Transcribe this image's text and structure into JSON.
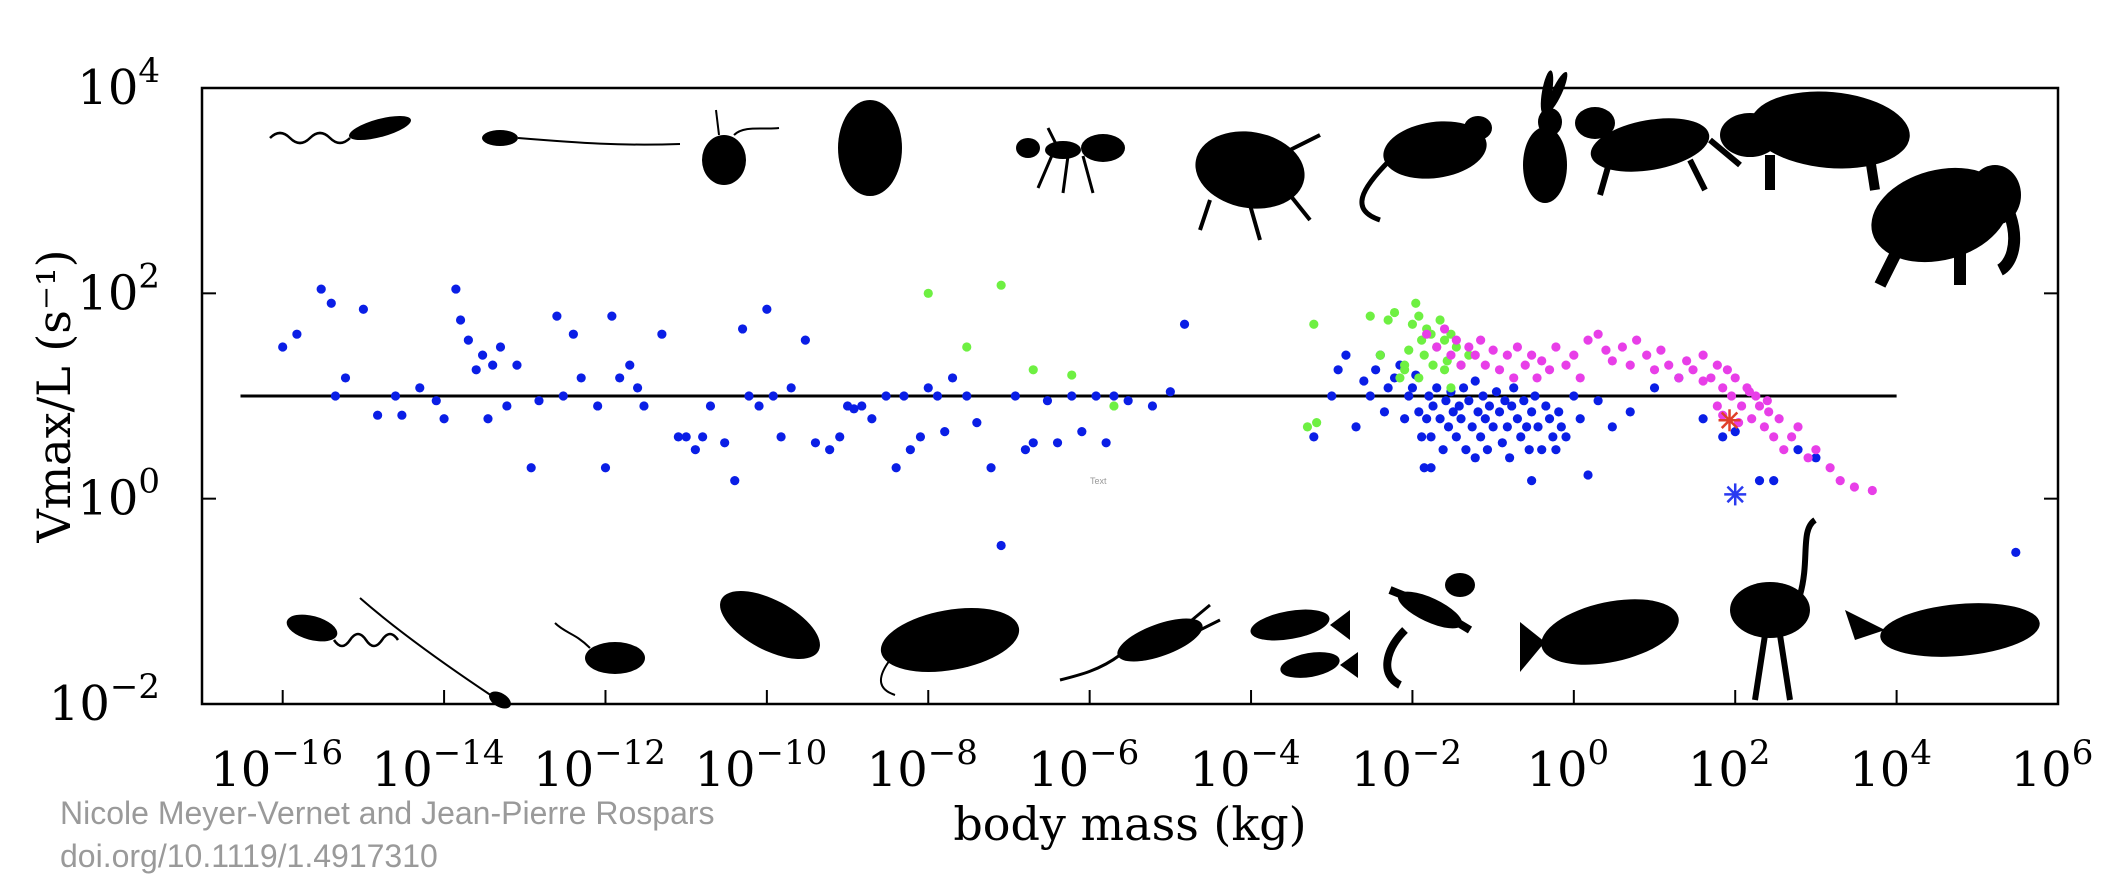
{
  "chart_data": {
    "type": "scatter",
    "title": "",
    "xlabel": "body mass (kg)",
    "ylabel": "Vmax/L (s⁻¹)",
    "x_scale": "log",
    "y_scale": "log",
    "xlim": [
      1e-17,
      1000000.0
    ],
    "ylim": [
      0.01,
      10000
    ],
    "x_ticks": [
      {
        "value": 1e-16,
        "base": "10",
        "exp": "−16"
      },
      {
        "value": 1e-14,
        "base": "10",
        "exp": "−14"
      },
      {
        "value": 1e-12,
        "base": "10",
        "exp": "−12"
      },
      {
        "value": 1e-10,
        "base": "10",
        "exp": "−10"
      },
      {
        "value": 1e-08,
        "base": "10",
        "exp": "−8"
      },
      {
        "value": 1e-06,
        "base": "10",
        "exp": "−6"
      },
      {
        "value": 0.0001,
        "base": "10",
        "exp": "−4"
      },
      {
        "value": 0.01,
        "base": "10",
        "exp": "−2"
      },
      {
        "value": 1,
        "base": "10",
        "exp": "0"
      },
      {
        "value": 100.0,
        "base": "10",
        "exp": "2"
      },
      {
        "value": 10000.0,
        "base": "10",
        "exp": "4"
      },
      {
        "value": 1000000.0,
        "base": "10",
        "exp": "6"
      }
    ],
    "y_ticks": [
      {
        "value": 0.01,
        "base": "10",
        "exp": "−2"
      },
      {
        "value": 1,
        "base": "10",
        "exp": "0"
      },
      {
        "value": 100,
        "base": "10",
        "exp": "2"
      },
      {
        "value": 10000,
        "base": "10",
        "exp": "4"
      }
    ],
    "grid": false,
    "reference_line": {
      "y": 10,
      "x_from": 3e-17,
      "x_to": 10000.0,
      "color": "#000000"
    },
    "stray_text": "Text",
    "series": [
      {
        "color": "#0a1ee6",
        "marker": "dot",
        "points": [
          [
            1e-16,
            30
          ],
          [
            1.5e-16,
            40
          ],
          [
            3e-16,
            110
          ],
          [
            4e-16,
            80
          ],
          [
            4.5e-16,
            10
          ],
          [
            6e-16,
            15
          ],
          [
            1e-15,
            70
          ],
          [
            1.5e-15,
            6.5
          ],
          [
            2.5e-15,
            10
          ],
          [
            3e-15,
            6.5
          ],
          [
            5e-15,
            12
          ],
          [
            8e-15,
            9
          ],
          [
            1e-14,
            6
          ],
          [
            1.4e-14,
            110
          ],
          [
            1.6e-14,
            55
          ],
          [
            2e-14,
            35
          ],
          [
            2.5e-14,
            18
          ],
          [
            3e-14,
            25
          ],
          [
            3.5e-14,
            6
          ],
          [
            4e-14,
            20
          ],
          [
            5e-14,
            30
          ],
          [
            6e-14,
            8
          ],
          [
            8e-14,
            20
          ],
          [
            1.2e-13,
            2
          ],
          [
            1.5e-13,
            9
          ],
          [
            2.5e-13,
            60
          ],
          [
            3e-13,
            10
          ],
          [
            4e-13,
            40
          ],
          [
            5e-13,
            15
          ],
          [
            8e-13,
            8
          ],
          [
            1e-12,
            2
          ],
          [
            1.2e-12,
            60
          ],
          [
            1.5e-12,
            15
          ],
          [
            2e-12,
            20
          ],
          [
            2.5e-12,
            12
          ],
          [
            3e-12,
            8
          ],
          [
            5e-12,
            40
          ],
          [
            8e-12,
            4
          ],
          [
            1e-11,
            4
          ],
          [
            1.3e-11,
            3
          ],
          [
            1.6e-11,
            4
          ],
          [
            2e-11,
            8
          ],
          [
            3e-11,
            3.5
          ],
          [
            4e-11,
            1.5
          ],
          [
            5e-11,
            45
          ],
          [
            6e-11,
            10
          ],
          [
            8e-11,
            8
          ],
          [
            1e-10,
            70
          ],
          [
            1.2e-10,
            10
          ],
          [
            1.5e-10,
            4
          ],
          [
            2e-10,
            12
          ],
          [
            3e-10,
            35
          ],
          [
            4e-10,
            3.5
          ],
          [
            6e-10,
            3
          ],
          [
            8e-10,
            4
          ],
          [
            1e-09,
            8
          ],
          [
            1.2e-09,
            7.5
          ],
          [
            1.5e-09,
            8
          ],
          [
            2e-09,
            6
          ],
          [
            3e-09,
            10
          ],
          [
            4e-09,
            2
          ],
          [
            5e-09,
            10
          ],
          [
            6e-09,
            3
          ],
          [
            8e-09,
            4
          ],
          [
            1e-08,
            12
          ],
          [
            1.3e-08,
            10
          ],
          [
            1.6e-08,
            4.5
          ],
          [
            2e-08,
            15
          ],
          [
            3e-08,
            10
          ],
          [
            4e-08,
            5.5
          ],
          [
            6e-08,
            2
          ],
          [
            8e-08,
            0.35
          ],
          [
            1.2e-07,
            10
          ],
          [
            1.6e-07,
            3
          ],
          [
            2e-07,
            3.5
          ],
          [
            3e-07,
            9
          ],
          [
            4e-07,
            3.5
          ],
          [
            6e-07,
            10
          ],
          [
            8e-07,
            4.5
          ],
          [
            1.2e-06,
            10
          ],
          [
            1.6e-06,
            3.5
          ],
          [
            2e-06,
            10
          ],
          [
            3e-06,
            9
          ],
          [
            6e-06,
            8
          ],
          [
            1e-05,
            11
          ],
          [
            1.5e-05,
            50
          ],
          [
            0.0006,
            4
          ],
          [
            0.001,
            10
          ],
          [
            0.0012,
            18
          ],
          [
            0.0015,
            25
          ],
          [
            0.002,
            5
          ],
          [
            0.0025,
            14
          ],
          [
            0.003,
            10
          ],
          [
            0.0035,
            18
          ],
          [
            0.004,
            25
          ],
          [
            0.0045,
            7
          ],
          [
            0.005,
            12
          ],
          [
            0.006,
            15
          ],
          [
            0.007,
            20
          ],
          [
            0.008,
            6
          ],
          [
            0.009,
            10
          ],
          [
            0.01,
            12
          ],
          [
            0.011,
            16
          ],
          [
            0.012,
            7
          ],
          [
            0.013,
            4
          ],
          [
            0.014,
            2
          ],
          [
            0.015,
            6
          ],
          [
            0.016,
            10
          ],
          [
            0.017,
            4
          ],
          [
            0.018,
            8
          ],
          [
            0.02,
            12
          ],
          [
            0.022,
            6
          ],
          [
            0.024,
            3
          ],
          [
            0.026,
            9
          ],
          [
            0.028,
            5
          ],
          [
            0.03,
            11
          ],
          [
            0.032,
            7
          ],
          [
            0.035,
            4
          ],
          [
            0.038,
            8
          ],
          [
            0.04,
            6
          ],
          [
            0.043,
            12
          ],
          [
            0.046,
            3
          ],
          [
            0.05,
            9
          ],
          [
            0.055,
            5
          ],
          [
            0.06,
            14
          ],
          [
            0.065,
            7
          ],
          [
            0.07,
            4
          ],
          [
            0.075,
            10
          ],
          [
            0.08,
            6
          ],
          [
            0.085,
            3
          ],
          [
            0.09,
            8
          ],
          [
            0.1,
            5
          ],
          [
            0.11,
            11
          ],
          [
            0.12,
            7
          ],
          [
            0.13,
            3.5
          ],
          [
            0.14,
            9
          ],
          [
            0.15,
            5
          ],
          [
            0.16,
            2.5
          ],
          [
            0.17,
            8
          ],
          [
            0.18,
            12
          ],
          [
            0.2,
            6
          ],
          [
            0.22,
            4
          ],
          [
            0.24,
            9
          ],
          [
            0.26,
            5
          ],
          [
            0.28,
            3
          ],
          [
            0.3,
            7
          ],
          [
            0.33,
            10
          ],
          [
            0.36,
            5
          ],
          [
            0.4,
            3
          ],
          [
            0.45,
            8
          ],
          [
            0.5,
            6
          ],
          [
            0.55,
            4
          ],
          [
            0.6,
            3
          ],
          [
            0.65,
            7
          ],
          [
            0.7,
            5
          ],
          [
            0.8,
            4
          ],
          [
            1.0,
            10
          ],
          [
            1.2,
            6
          ],
          [
            1.5,
            1.7
          ],
          [
            2.0,
            9
          ],
          [
            3.0,
            5
          ],
          [
            5.0,
            7
          ],
          [
            10.0,
            12
          ],
          [
            20.0,
            15
          ],
          [
            40.0,
            6
          ],
          [
            70.0,
            4
          ],
          [
            100.0,
            4.5
          ],
          [
            200.0,
            1.5
          ],
          [
            300.0,
            1.5
          ],
          [
            600.0,
            3
          ],
          [
            1000.0,
            2.5
          ],
          [
            300000.0,
            0.3
          ],
          [
            0.017,
            2
          ],
          [
            0.3,
            1.5
          ],
          [
            0.06,
            2.5
          ]
        ]
      },
      {
        "color": "#6ef042",
        "marker": "dot",
        "points": [
          [
            1e-08,
            100
          ],
          [
            3e-08,
            30
          ],
          [
            8e-08,
            120
          ],
          [
            2e-07,
            18
          ],
          [
            6e-07,
            16
          ],
          [
            2e-06,
            8
          ],
          [
            0.0005,
            5
          ],
          [
            0.0006,
            50
          ],
          [
            0.00065,
            5.5
          ],
          [
            0.003,
            60
          ],
          [
            0.004,
            25
          ],
          [
            0.005,
            55
          ],
          [
            0.006,
            65
          ],
          [
            0.007,
            15
          ],
          [
            0.008,
            20
          ],
          [
            0.009,
            28
          ],
          [
            0.01,
            50
          ],
          [
            0.011,
            80
          ],
          [
            0.012,
            60
          ],
          [
            0.013,
            35
          ],
          [
            0.014,
            25
          ],
          [
            0.015,
            45
          ],
          [
            0.017,
            40
          ],
          [
            0.018,
            20
          ],
          [
            0.02,
            30
          ],
          [
            0.022,
            55
          ],
          [
            0.025,
            35
          ],
          [
            0.027,
            22
          ],
          [
            0.03,
            40
          ],
          [
            0.035,
            30
          ],
          [
            0.04,
            20
          ],
          [
            0.05,
            25
          ],
          [
            0.008,
            18
          ],
          [
            0.012,
            15
          ],
          [
            0.025,
            18
          ],
          [
            0.03,
            12
          ]
        ]
      },
      {
        "color": "#e83ee8",
        "marker": "dot",
        "points": [
          [
            0.015,
            40
          ],
          [
            0.02,
            30
          ],
          [
            0.025,
            45
          ],
          [
            0.03,
            25
          ],
          [
            0.035,
            35
          ],
          [
            0.04,
            20
          ],
          [
            0.05,
            30
          ],
          [
            0.06,
            25
          ],
          [
            0.07,
            35
          ],
          [
            0.08,
            20
          ],
          [
            0.1,
            28
          ],
          [
            0.12,
            18
          ],
          [
            0.15,
            25
          ],
          [
            0.18,
            15
          ],
          [
            0.2,
            30
          ],
          [
            0.25,
            20
          ],
          [
            0.3,
            25
          ],
          [
            0.35,
            15
          ],
          [
            0.4,
            22
          ],
          [
            0.5,
            18
          ],
          [
            0.6,
            30
          ],
          [
            0.8,
            20
          ],
          [
            1.0,
            25
          ],
          [
            1.2,
            15
          ],
          [
            1.5,
            35
          ],
          [
            2.0,
            40
          ],
          [
            2.5,
            28
          ],
          [
            3.0,
            22
          ],
          [
            4.0,
            30
          ],
          [
            5.0,
            20
          ],
          [
            6.0,
            35
          ],
          [
            8.0,
            25
          ],
          [
            10.0,
            18
          ],
          [
            12.0,
            28
          ],
          [
            15.0,
            20
          ],
          [
            20.0,
            15
          ],
          [
            25.0,
            22
          ],
          [
            30.0,
            18
          ],
          [
            40.0,
            25
          ],
          [
            50.0,
            15
          ],
          [
            60.0,
            20
          ],
          [
            70.0,
            12
          ],
          [
            80.0,
            18
          ],
          [
            90.0,
            10
          ],
          [
            100.0,
            15
          ],
          [
            120.0,
            8
          ],
          [
            140.0,
            12
          ],
          [
            160.0,
            6
          ],
          [
            180.0,
            10
          ],
          [
            200.0,
            8
          ],
          [
            230.0,
            5
          ],
          [
            260.0,
            7
          ],
          [
            300.0,
            4
          ],
          [
            350.0,
            6
          ],
          [
            400.0,
            3
          ],
          [
            500.0,
            4
          ],
          [
            600.0,
            5
          ],
          [
            800.0,
            2.5
          ],
          [
            1000.0,
            3
          ],
          [
            1500.0,
            2
          ],
          [
            2000.0,
            1.5
          ],
          [
            3000.0,
            1.3
          ],
          [
            5000.0,
            1.2
          ],
          [
            60.0,
            8
          ],
          [
            110.0,
            5.5
          ],
          [
            70.0,
            6.5
          ],
          [
            250.0,
            9
          ],
          [
            150.0,
            11
          ],
          [
            40.0,
            14
          ]
        ]
      },
      {
        "color": "#e0402a",
        "marker": "asterisk",
        "points": [
          [
            85,
            5.8
          ]
        ]
      },
      {
        "color": "#2a3af0",
        "marker": "asterisk",
        "points": [
          [
            100,
            1.1
          ]
        ]
      }
    ]
  },
  "silhouettes": {
    "top": [
      "bacterium-flagellated-icon",
      "sperm-cell-icon",
      "flagellate-cell-icon",
      "ciliate-icon",
      "ant-icon",
      "beetle-icon",
      "mouse-icon",
      "rabbit-icon",
      "dog-icon",
      "rhinoceros-icon",
      "elephant-icon"
    ],
    "bottom": [
      "bacterium-icon",
      "sperm-cell-icon",
      "flagellate-cell-icon",
      "ciliate-icon",
      "paramecium-icon",
      "shrimp-icon",
      "fish-pair-icon",
      "lizard-icon",
      "salmon-icon",
      "ostrich-icon",
      "whale-icon"
    ]
  },
  "credit": {
    "author": "Nicole Meyer-Vernet and Jean-Pierre Rospars",
    "doi": "doi.org/10.1119/1.4917310"
  }
}
